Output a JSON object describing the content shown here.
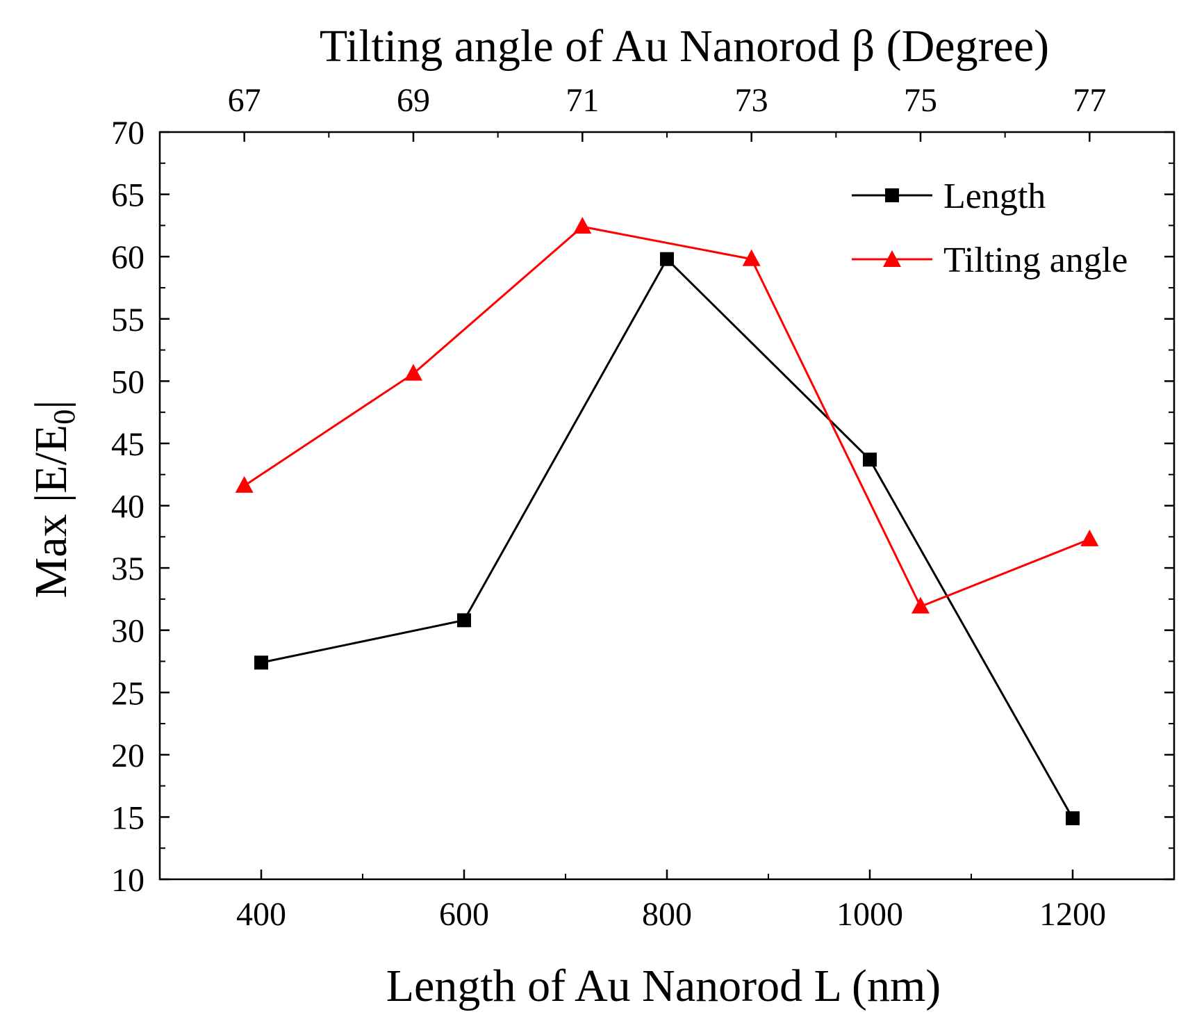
{
  "chart_data": {
    "type": "line",
    "title": "",
    "xlabel": "Length of Au Nanorod L (nm)",
    "x2label": "Tilting angle of Au Nanorod β (Degree)",
    "ylabel_main": "Max |E/E",
    "ylabel_sub": "0",
    "ylabel_end": "|",
    "xlim": [
      300,
      1300
    ],
    "x2lim": [
      66,
      78
    ],
    "ylim": [
      10,
      70
    ],
    "x_ticks": [
      400,
      600,
      800,
      1000,
      1200
    ],
    "x_tick_labels": [
      "400",
      "600",
      "800",
      "1000",
      "1200"
    ],
    "x2_ticks": [
      67,
      69,
      71,
      73,
      75,
      77
    ],
    "x2_tick_labels": [
      "67",
      "69",
      "71",
      "73",
      "75",
      "77"
    ],
    "y_ticks": [
      10,
      15,
      20,
      25,
      30,
      35,
      40,
      45,
      50,
      55,
      60,
      65,
      70
    ],
    "y_tick_labels": [
      "10",
      "15",
      "20",
      "25",
      "30",
      "35",
      "40",
      "45",
      "50",
      "55",
      "60",
      "65",
      "70"
    ],
    "grid": false,
    "legend_position": "top-right",
    "series": [
      {
        "name": "Length",
        "axis": "bottom",
        "marker": "square",
        "color": "#000000",
        "x": [
          400,
          600,
          800,
          1000,
          1200
        ],
        "values": [
          27.4,
          30.8,
          59.8,
          43.7,
          14.9
        ]
      },
      {
        "name": "Tilting angle",
        "axis": "top",
        "marker": "triangle",
        "color": "#ff0000",
        "x": [
          67,
          69,
          71,
          73,
          75,
          77
        ],
        "values": [
          41.6,
          50.6,
          62.4,
          59.8,
          31.9,
          37.3
        ]
      }
    ]
  }
}
